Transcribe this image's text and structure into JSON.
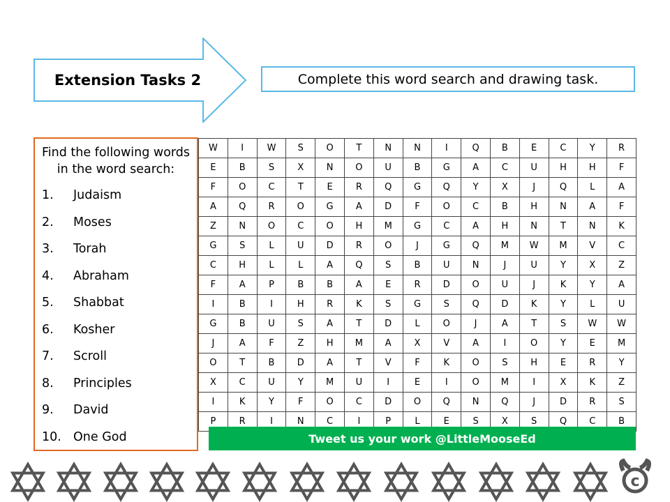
{
  "header": {
    "title": "Extension Tasks 2",
    "instruction": "Complete this word search and drawing task."
  },
  "wordbox": {
    "heading_line1": "Find the following words",
    "heading_line2": "in the word search:",
    "words": [
      {
        "num": "1.",
        "word": "Judaism"
      },
      {
        "num": "2.",
        "word": "Moses"
      },
      {
        "num": "3.",
        "word": "Torah"
      },
      {
        "num": "4.",
        "word": "Abraham"
      },
      {
        "num": "5.",
        "word": "Shabbat"
      },
      {
        "num": "6.",
        "word": "Kosher"
      },
      {
        "num": "7.",
        "word": "Scroll"
      },
      {
        "num": "8.",
        "word": "Principles"
      },
      {
        "num": "9.",
        "word": "David"
      },
      {
        "num": "10.",
        "word": "One God"
      }
    ]
  },
  "grid": [
    "WIWSOTNNIQBECYR",
    "EBSXNOUBGACUHHF",
    "FOCTERQGQYXJQLA",
    "AQROGADFOCBHNAF",
    "ZNOCOHMGCAHNTNK",
    "GSLUDROJGQMWMVC",
    "CHLLAQSBUNJUYXZ",
    "FAPBBAERDOUJKYA",
    "IBIHRKSGSQDKYLU",
    "GBUSATDLOJATSWW",
    "JAFZHMAXVAIOYEM",
    "OTBDATVFKOSHERY",
    "XCUYMUIEIOMIXKZ",
    "IKYFOCDOQNQJDRS",
    "PRINCIPLESXSQCB"
  ],
  "footer": {
    "tweet": "Tweet us your work @LittleMooseEd",
    "icons": "star-of-david-icon",
    "logo": "little-moose-logo"
  },
  "colors": {
    "arrow": "#5bb8e6",
    "wordbox_border": "#e06a1e",
    "tweet_bg": "#00b050",
    "stars": "#555555"
  }
}
